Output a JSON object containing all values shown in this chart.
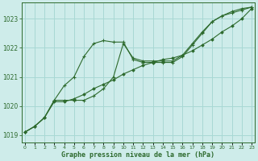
{
  "x": [
    0,
    1,
    2,
    3,
    4,
    5,
    6,
    7,
    8,
    9,
    10,
    11,
    12,
    13,
    14,
    15,
    16,
    17,
    18,
    19,
    20,
    21,
    22,
    23
  ],
  "line1": [
    1019.1,
    1019.3,
    1019.6,
    1020.2,
    1020.7,
    1021.0,
    1021.7,
    1022.15,
    1022.25,
    1022.2,
    1022.2,
    1021.6,
    1021.5,
    1021.5,
    1021.5,
    1021.5,
    1021.7,
    1022.1,
    1022.5,
    1022.9,
    1023.1,
    1023.2,
    1023.3,
    1023.4
  ],
  "line2": [
    1019.1,
    1019.3,
    1019.6,
    1020.2,
    1020.2,
    1020.2,
    1020.2,
    1020.35,
    1020.6,
    1021.0,
    1022.15,
    1021.65,
    1021.55,
    1021.55,
    1021.55,
    1021.55,
    1021.75,
    1022.15,
    1022.55,
    1022.9,
    1023.1,
    1023.25,
    1023.35,
    1023.4
  ],
  "line3": [
    1019.1,
    1019.3,
    1019.6,
    1020.15,
    1020.15,
    1020.25,
    1020.4,
    1020.6,
    1020.75,
    1020.9,
    1021.1,
    1021.25,
    1021.4,
    1021.5,
    1021.6,
    1021.65,
    1021.75,
    1021.9,
    1022.1,
    1022.3,
    1022.55,
    1022.75,
    1023.0,
    1023.35
  ],
  "line_color": "#2d6a2d",
  "bg_color": "#ceecea",
  "grid_color": "#a8d8d4",
  "xlabel": "Graphe pression niveau de la mer (hPa)",
  "ylim": [
    1018.75,
    1023.55
  ],
  "yticks": [
    1019,
    1020,
    1021,
    1022,
    1023
  ],
  "xticks": [
    0,
    1,
    2,
    3,
    4,
    5,
    6,
    7,
    8,
    9,
    10,
    11,
    12,
    13,
    14,
    15,
    16,
    17,
    18,
    19,
    20,
    21,
    22,
    23
  ]
}
